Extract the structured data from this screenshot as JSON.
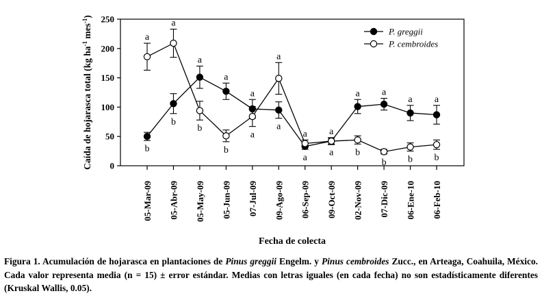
{
  "chart_data": {
    "type": "line",
    "ylabel_html": "Caída de hojarasca total (kg ha⁻¹ mes⁻¹)",
    "ylabel_parts": [
      "Caída de hojarasca total (kg ha",
      "-1",
      " mes",
      "-1",
      ")"
    ],
    "xlabel": "Fecha de colecta",
    "ylim": [
      0,
      250
    ],
    "yticks": [
      0,
      50,
      100,
      150,
      200,
      250
    ],
    "categories": [
      "05-Mar-09",
      "05-Abr-09",
      "05-May-09",
      "05-Jun-09",
      "07-Jul-09",
      "09-Ago-09",
      "06-Sep-09",
      "09-Oct-09",
      "02-Nov-09",
      "07-Dic-09",
      "06-Ene-10",
      "06-Feb-10"
    ],
    "series": [
      {
        "name": "P. greggii",
        "marker": "filled",
        "values": [
          50,
          106,
          151,
          127,
          97,
          95,
          33,
          42,
          101,
          105,
          90,
          87
        ],
        "errors": [
          7,
          17,
          19,
          14,
          16,
          14,
          5,
          5,
          12,
          10,
          13,
          16
        ],
        "letters": [
          "b",
          "b",
          "a",
          "a",
          "a",
          "a",
          "a",
          "a",
          "a",
          "a",
          "a",
          "a"
        ],
        "letter_pos": [
          "below",
          "below",
          "above",
          "above",
          "above",
          "below",
          "below",
          "below",
          "above",
          "above",
          "above",
          "above"
        ]
      },
      {
        "name": "P. cembroides",
        "marker": "open",
        "values": [
          186,
          209,
          94,
          51,
          84,
          149,
          38,
          42,
          44,
          24,
          32,
          36
        ],
        "errors": [
          23,
          24,
          16,
          10,
          17,
          27,
          6,
          6,
          7,
          4,
          7,
          8
        ],
        "letters": [
          "a",
          "a",
          "b",
          "b",
          "a",
          "a",
          "a",
          "a",
          "b",
          "b",
          "b",
          "b"
        ],
        "letter_pos": [
          "above",
          "above",
          "below",
          "below",
          "below",
          "above",
          "above",
          "above",
          "below",
          "below",
          "below",
          "below"
        ]
      }
    ],
    "legend_position": "top-right"
  },
  "caption": {
    "prefix": "Figura 1. Acumulación de hojarasca en plantaciones de ",
    "species1": "Pinus greggii",
    "middle": " Engelm. y ",
    "species2": "Pinus cembroides",
    "suffix": " Zucc., en Arteaga, Coahuila, México. Cada valor representa media (n = 15) ± error estándar. Medias con letras iguales (en cada fecha) no son estadísticamente diferentes (Kruskal Wallis, 0.05)."
  }
}
